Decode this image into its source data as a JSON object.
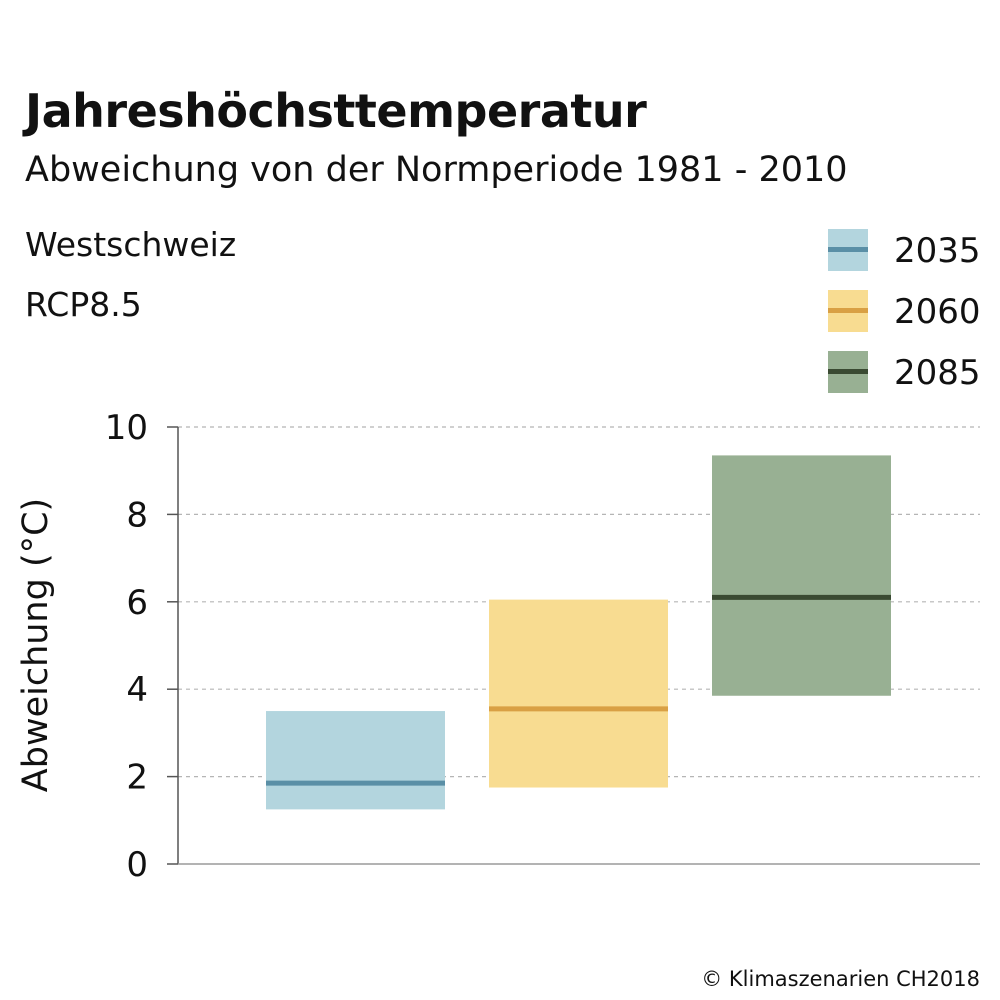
{
  "title": "Jahreshöchsttemperatur",
  "subtitle": "Abweichung von der Normperiode 1981 - 2010",
  "region": "Westschweiz",
  "scenario": "RCP8.5",
  "footer": "© Klimaszenarien CH2018",
  "chart_data": {
    "type": "bar",
    "title": "Jahreshöchsttemperatur",
    "subtitle": "Abweichung von der Normperiode 1981 - 2010",
    "xlabel": "",
    "ylabel": "Abweichung (°C)",
    "ylim": [
      0,
      10
    ],
    "yticks": [
      0,
      2,
      4,
      6,
      8,
      10
    ],
    "grid": true,
    "legend_position": "top-right",
    "series": [
      {
        "name": "2035",
        "low": 1.25,
        "median": 1.85,
        "high": 3.5,
        "fill_color": "#b3d5de",
        "median_color": "#5a8fa6"
      },
      {
        "name": "2060",
        "low": 1.75,
        "median": 3.55,
        "high": 6.05,
        "fill_color": "#f8dc91",
        "median_color": "#d9a044"
      },
      {
        "name": "2085",
        "low": 3.85,
        "median": 6.1,
        "high": 9.35,
        "fill_color": "#98b093",
        "median_color": "#3a4a32"
      }
    ]
  }
}
